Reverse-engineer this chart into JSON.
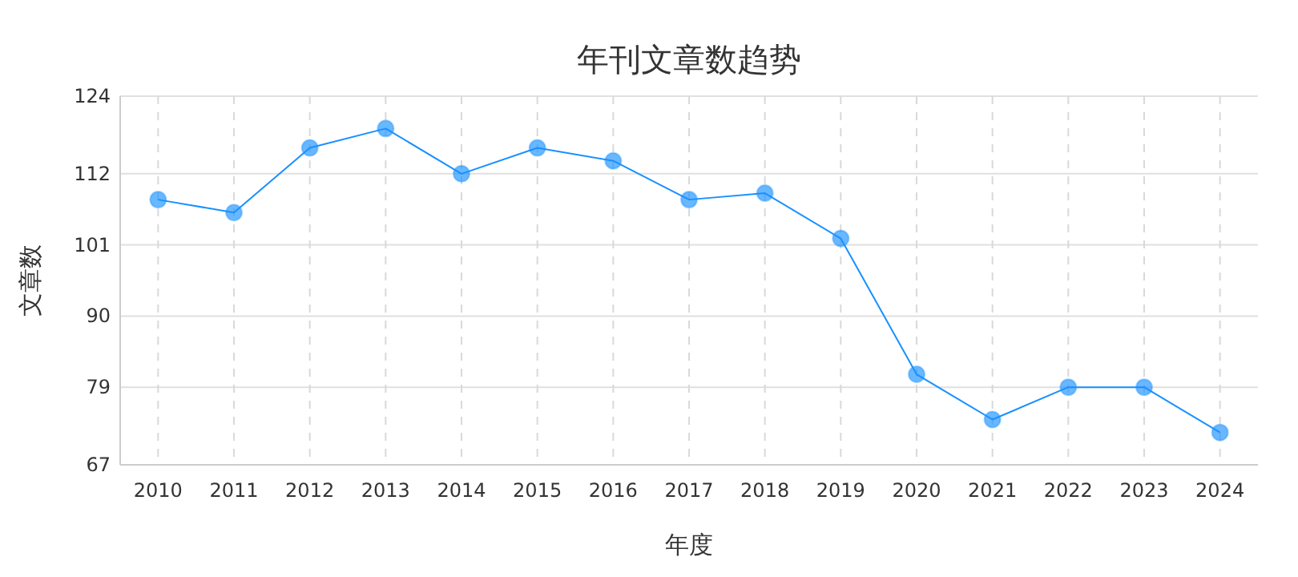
{
  "chart_data": {
    "type": "line",
    "title": "年刊文章数趋势",
    "xlabel": "年度",
    "ylabel": "文章数",
    "categories": [
      "2010",
      "2011",
      "2012",
      "2013",
      "2014",
      "2015",
      "2016",
      "2017",
      "2018",
      "2019",
      "2020",
      "2021",
      "2022",
      "2023",
      "2024"
    ],
    "series": [
      {
        "color": "#1890ff",
        "values": [
          108,
          106,
          116,
          119,
          112,
          116,
          114,
          108,
          109,
          102,
          81,
          74,
          79,
          79,
          72
        ]
      }
    ],
    "ylim": [
      67,
      124
    ],
    "yticks": [
      67,
      79,
      90,
      101,
      112,
      124
    ],
    "grid": true,
    "marker": "circle",
    "line_style": "solid"
  }
}
